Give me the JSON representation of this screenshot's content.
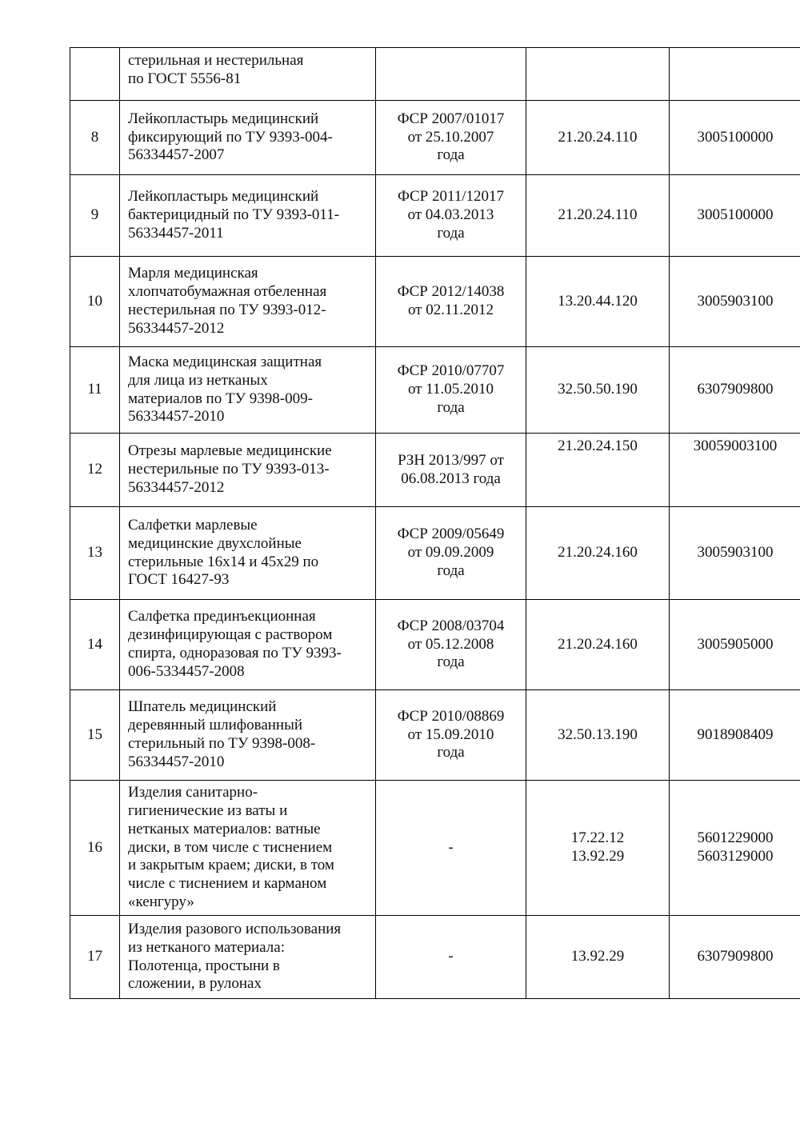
{
  "document": {
    "background": "#ffffff",
    "text_color": "#111111",
    "border_color": "#000000",
    "description": "Continuation page of a table listing medical products with registration certificates, OKPD codes and TN VED codes"
  },
  "table": {
    "column_keys": [
      "num",
      "name",
      "cert",
      "okpd",
      "tnved"
    ],
    "column_semantics": {
      "num": "row-number",
      "name": "product-name",
      "cert": "registration-certificate",
      "okpd": "okpd-code",
      "tnved": "tnved-code"
    },
    "rows": [
      {
        "num": "",
        "name": "стерильная и нестерильная\nпо ГОСТ 5556-81",
        "cert": "",
        "okpd": "",
        "tnved": ""
      },
      {
        "num": "8",
        "name": "Лейкопластырь медицинский\nфиксирующий по ТУ 9393-004-\n56334457-2007",
        "cert": "ФСР 2007/01017\nот 25.10.2007\nгода",
        "okpd": "21.20.24.110",
        "tnved": "3005100000"
      },
      {
        "num": "9",
        "name": "Лейкопластырь медицинский\nбактерицидный по ТУ 9393-011-\n56334457-2011",
        "cert": "ФСР 2011/12017\nот 04.03.2013\nгода",
        "okpd": "21.20.24.110",
        "tnved": "3005100000"
      },
      {
        "num": "10",
        "name": "Марля медицинская\nхлопчатобумажная отбеленная\nнестерильная по ТУ 9393-012-\n56334457-2012",
        "cert": "ФСР 2012/14038\nот 02.11.2012",
        "okpd": "13.20.44.120",
        "tnved": "3005903100"
      },
      {
        "num": "11",
        "name": "Маска медицинская защитная\nдля лица из нетканых\nматериалов по ТУ 9398-009-\n56334457-2010",
        "cert": "ФСР 2010/07707\nот 11.05.2010\nгода",
        "okpd": "32.50.50.190",
        "tnved": "6307909800"
      },
      {
        "num": "12",
        "name": "Отрезы марлевые медицинские\nнестерильные по ТУ 9393-013-\n56334457-2012",
        "cert": "РЗН 2013/997 от\n06.08.2013 года",
        "okpd": "21.20.24.150",
        "tnved": "30059003100"
      },
      {
        "num": "13",
        "name": "Салфетки марлевые\nмедицинские двухслойные\nстерильные 16х14 и 45х29 по\nГОСТ 16427-93",
        "cert": "ФСР 2009/05649\nот 09.09.2009\nгода",
        "okpd": "21.20.24.160",
        "tnved": "3005903100"
      },
      {
        "num": "14",
        "name": "Салфетка прединъекционная\nдезинфицирующая с раствором\nспирта, одноразовая по ТУ 9393-\n006-5334457-2008",
        "cert": "ФСР 2008/03704\nот 05.12.2008\nгода",
        "okpd": "21.20.24.160",
        "tnved": "3005905000"
      },
      {
        "num": "15",
        "name": "Шпатель медицинский\nдеревянный шлифованный\nстерильный по ТУ 9398-008-\n56334457-2010",
        "cert": "ФСР 2010/08869\nот 15.09.2010\nгода",
        "okpd": "32.50.13.190",
        "tnved": "9018908409"
      },
      {
        "num": "16",
        "name": "Изделия санитарно-\nгигиенические из ваты и\nнетканых материалов: ватные\nдиски, в том числе с тиснением\nи закрытым краем; диски, в том\nчисле с тиснением и карманом\n«кенгуру»",
        "cert": "-",
        "okpd": "17.22.12\n13.92.29",
        "tnved": "5601229000\n5603129000"
      },
      {
        "num": "17",
        "name": "Изделия разового использования\nиз нетканого материала:\nПолотенца, простыни в\nсложении, в рулонах",
        "cert": "-",
        "okpd": "13.92.29",
        "tnved": "6307909800"
      }
    ]
  }
}
